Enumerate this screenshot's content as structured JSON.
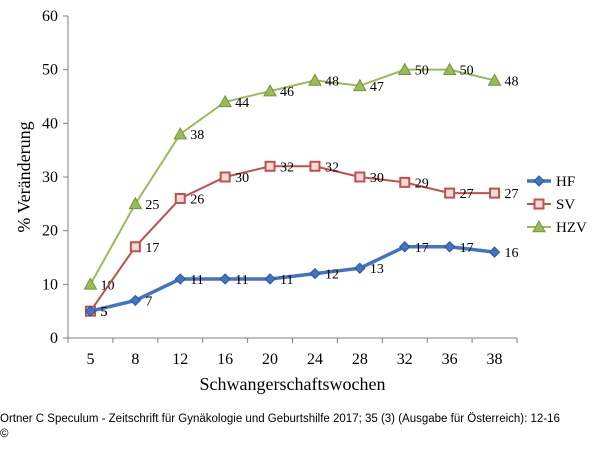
{
  "chart_data": {
    "type": "line",
    "categories": [
      "5",
      "8",
      "12",
      "16",
      "20",
      "24",
      "28",
      "32",
      "36",
      "38"
    ],
    "series": [
      {
        "name": "HF",
        "color": "#4472C4",
        "marker": "diamond",
        "values": [
          5,
          7,
          11,
          11,
          11,
          12,
          13,
          17,
          17,
          16
        ]
      },
      {
        "name": "SV",
        "color": "#C0504D",
        "marker": "square",
        "values": [
          5,
          17,
          26,
          30,
          32,
          32,
          30,
          29,
          27,
          27
        ]
      },
      {
        "name": "HZV",
        "color": "#9BBB59",
        "marker": "triangle",
        "values": [
          10,
          25,
          38,
          44,
          46,
          48,
          47,
          50,
          50,
          48
        ]
      }
    ],
    "xlabel": "Schwangerschaftswochen",
    "ylabel": "% Veränderung",
    "ylim": [
      0,
      60
    ],
    "yticks": [
      0,
      10,
      20,
      30,
      40,
      50,
      60
    ],
    "grid": false,
    "legend": "right"
  },
  "caption": {
    "line1": "Ortner C Speculum - Zeitschrift für Gynäkologie und Geburtshilfe 2017; 35 (3) (Ausgabe für Österreich): 12-16",
    "line2": "©"
  }
}
